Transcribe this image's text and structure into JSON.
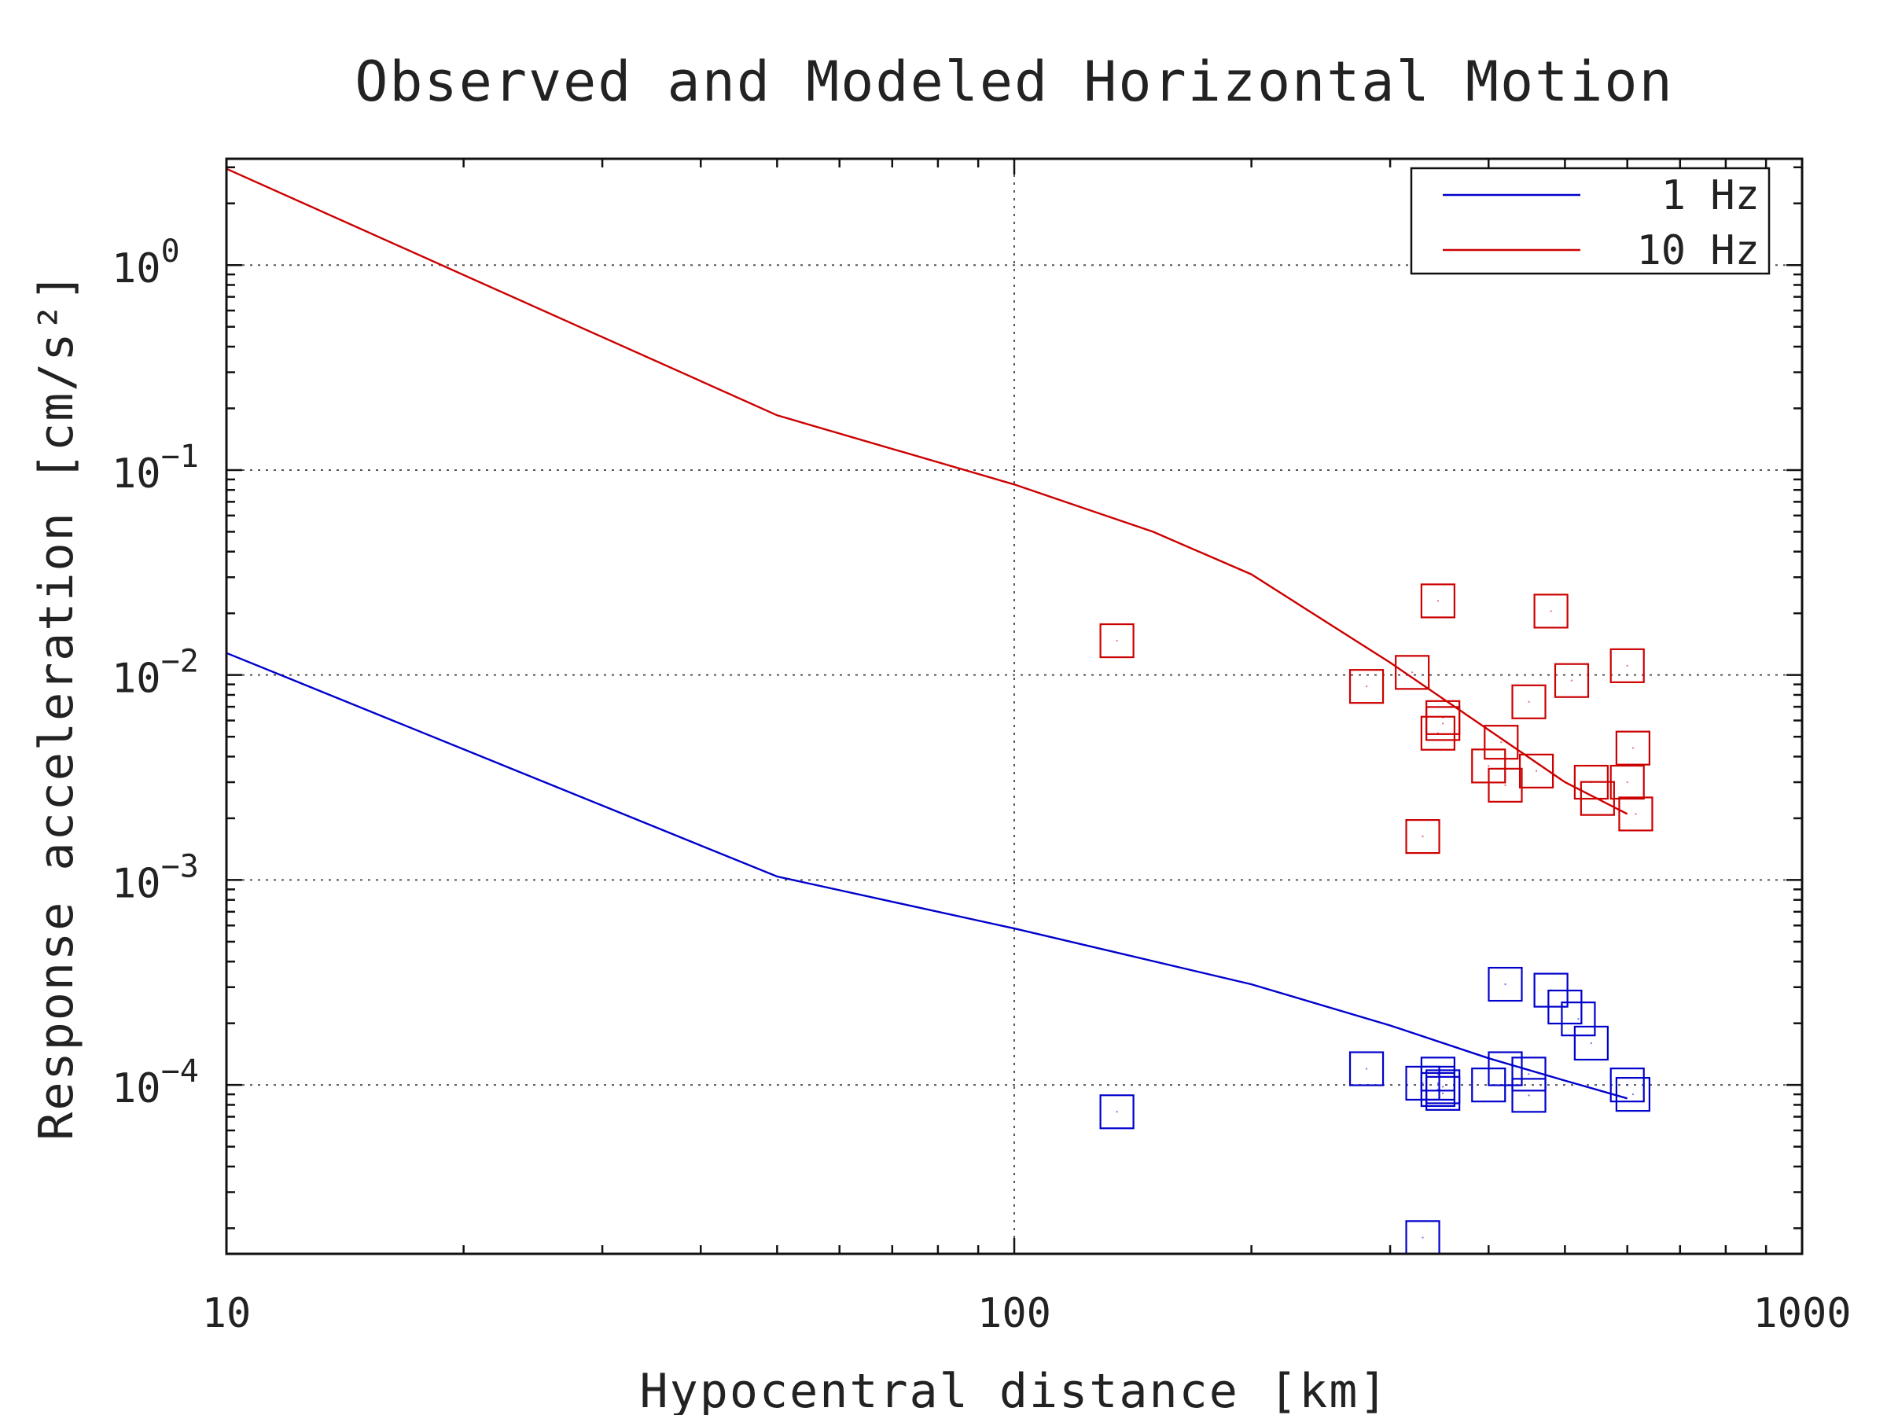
{
  "chart_data": {
    "type": "scatter",
    "title": "Observed and Modeled Horizontal Motion",
    "xlabel": "Hypocentral distance [km]",
    "ylabel": "Response acceleration [cm/s²]",
    "x_scale": "log",
    "y_scale": "log",
    "xlim": [
      10,
      1000
    ],
    "ylim": [
      1.5e-05,
      3.3
    ],
    "x_ticks": [
      {
        "value": 10,
        "label": "10"
      },
      {
        "value": 100,
        "label": "100"
      },
      {
        "value": 1000,
        "label": "1000"
      }
    ],
    "y_ticks": [
      {
        "value": 1,
        "base": "10",
        "exp": "0"
      },
      {
        "value": 0.1,
        "base": "10",
        "exp": "−1"
      },
      {
        "value": 0.01,
        "base": "10",
        "exp": "−2"
      },
      {
        "value": 0.001,
        "base": "10",
        "exp": "−3"
      },
      {
        "value": 0.0001,
        "base": "10",
        "exp": "−4"
      }
    ],
    "grid": true,
    "legend_position": "top-right",
    "series": [
      {
        "name": "1 Hz",
        "color": "#0000cc",
        "model": {
          "x": [
            10,
            50,
            100,
            200,
            300,
            400,
            500,
            600
          ],
          "y": [
            0.0128,
            0.00104,
            0.00058,
            0.00031,
            0.000195,
            0.000135,
            0.000105,
            8.6e-05
          ]
        },
        "observed": {
          "x": [
            135,
            280,
            330,
            330,
            345,
            345,
            345,
            350,
            350,
            400,
            420,
            420,
            450,
            450,
            480,
            500,
            520,
            540,
            600,
            610
          ],
          "y": [
            7.4e-05,
            0.00012,
            0.000102,
            1.8e-05,
            0.000113,
            0.000102,
            9.5e-05,
            9.1e-05,
            9.8e-05,
            0.0001,
            0.00012,
            0.00031,
            8.9e-05,
            0.000113,
            0.00029,
            0.00024,
            0.00021,
            0.00016,
            0.0001,
            9e-05
          ]
        }
      },
      {
        "name": "10 Hz",
        "color": "#cc0000",
        "model": {
          "x": [
            10,
            50,
            100,
            150,
            200,
            300,
            400,
            500,
            600
          ],
          "y": [
            2.95,
            0.185,
            0.085,
            0.05,
            0.031,
            0.0115,
            0.0054,
            0.003,
            0.0021
          ]
        },
        "observed": {
          "x": [
            135,
            280,
            320,
            330,
            345,
            345,
            350,
            350,
            400,
            415,
            420,
            450,
            460,
            480,
            510,
            540,
            550,
            600,
            600,
            610,
            615
          ],
          "y": [
            0.0147,
            0.0088,
            0.0103,
            0.00163,
            0.023,
            0.0052,
            0.0062,
            0.0058,
            0.0036,
            0.0047,
            0.0029,
            0.0074,
            0.0034,
            0.0205,
            0.0094,
            0.003,
            0.0025,
            0.0111,
            0.003,
            0.0044,
            0.0021
          ]
        }
      }
    ]
  }
}
